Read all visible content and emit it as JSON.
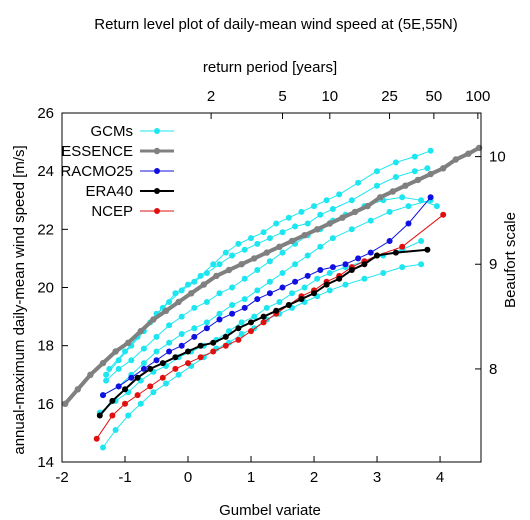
{
  "chart_data": {
    "type": "scatter",
    "title": "Return level plot of daily-mean wind speed at (5E,55N)",
    "xlabel": "Gumbel variate",
    "ylabel": "annual-maximum daily-mean wind speed [m/s]",
    "x2label": "return period [years]",
    "y2label": "Beaufort scale",
    "xlim": [
      -2,
      4.65
    ],
    "ylim": [
      14,
      26
    ],
    "xticks": [
      -2,
      -1,
      0,
      1,
      2,
      3,
      4
    ],
    "yticks": [
      14,
      16,
      18,
      20,
      22,
      24,
      26
    ],
    "top_ticks": [
      {
        "label": "2",
        "value": 2
      },
      {
        "label": "5",
        "value": 5
      },
      {
        "label": "10",
        "value": 10
      },
      {
        "label": "25",
        "value": 25
      },
      {
        "label": "50",
        "value": 50
      },
      {
        "label": "100",
        "value": 100
      }
    ],
    "right_ticks": [
      {
        "label": "8",
        "value": 17.2
      },
      {
        "label": "9",
        "value": 20.8
      },
      {
        "label": "10",
        "value": 24.5
      }
    ],
    "grid": false,
    "legend": "top-left",
    "series": [
      {
        "name": "GCMs",
        "color": "#1ee6f0",
        "lines": [
          {
            "x": [
              -1.25,
              -1.0,
              -0.8,
              -0.6,
              -0.4,
              -0.2,
              0,
              0.2,
              0.4,
              0.6,
              0.8,
              1.0,
              1.2,
              1.4,
              1.6,
              1.8,
              2.0,
              2.2,
              2.4,
              2.7,
              3.0,
              3.3,
              3.6,
              3.85
            ],
            "y": [
              17.2,
              17.8,
              18.3,
              18.8,
              19.3,
              19.8,
              20.1,
              20.4,
              20.8,
              21.2,
              21.5,
              21.7,
              21.9,
              22.2,
              22.4,
              22.6,
              22.8,
              23.0,
              23.2,
              23.6,
              24.0,
              24.3,
              24.5,
              24.7
            ]
          },
          {
            "x": [
              -1.3,
              -1.1,
              -0.9,
              -0.7,
              -0.5,
              -0.3,
              -0.1,
              0.1,
              0.3,
              0.5,
              0.7,
              0.9,
              1.1,
              1.3,
              1.5,
              1.7,
              1.9,
              2.1,
              2.3,
              2.6,
              3.0,
              3.3,
              3.6,
              3.8
            ],
            "y": [
              17.0,
              17.5,
              18.0,
              18.5,
              19.1,
              19.5,
              19.9,
              20.2,
              20.5,
              20.8,
              21.1,
              21.3,
              21.5,
              21.7,
              21.9,
              22.1,
              22.2,
              22.5,
              22.7,
              23.0,
              23.5,
              23.8,
              24.0,
              24.1
            ]
          },
          {
            "x": [
              -1.3,
              -1.1,
              -0.9,
              -0.7,
              -0.5,
              -0.3,
              -0.1,
              0.1,
              0.3,
              0.5,
              0.7,
              0.9,
              1.1,
              1.3,
              1.5,
              1.7,
              1.9,
              2.1,
              2.3,
              2.5,
              2.8,
              3.1,
              3.4,
              3.7,
              3.95
            ],
            "y": [
              16.8,
              17.2,
              17.5,
              17.9,
              18.3,
              18.7,
              19.0,
              19.3,
              19.5,
              19.8,
              20.0,
              20.3,
              20.6,
              20.9,
              21.2,
              21.5,
              21.8,
              22.0,
              22.3,
              22.5,
              22.8,
              23.0,
              23.1,
              23.0,
              22.8
            ]
          },
          {
            "x": [
              -1.35,
              -1.1,
              -0.9,
              -0.7,
              -0.5,
              -0.3,
              -0.1,
              0.1,
              0.3,
              0.5,
              0.7,
              0.9,
              1.1,
              1.3,
              1.5,
              1.7,
              1.9,
              2.1,
              2.3,
              2.6,
              2.9,
              3.2,
              3.5,
              3.85
            ],
            "y": [
              16.3,
              16.6,
              17.0,
              17.4,
              17.8,
              18.1,
              18.4,
              18.6,
              18.8,
              19.1,
              19.4,
              19.6,
              19.9,
              20.2,
              20.5,
              20.8,
              21.1,
              21.4,
              21.7,
              22.0,
              22.3,
              22.6,
              22.8,
              23.0
            ]
          },
          {
            "x": [
              -1.4,
              -1.15,
              -0.95,
              -0.75,
              -0.55,
              -0.35,
              -0.15,
              0.05,
              0.25,
              0.45,
              0.65,
              0.85,
              1.05,
              1.25,
              1.45,
              1.65,
              1.85,
              2.05,
              2.25,
              2.5,
              2.8,
              3.1,
              3.4,
              3.7
            ],
            "y": [
              15.7,
              16.1,
              16.4,
              16.8,
              17.1,
              17.3,
              17.6,
              17.8,
              18.0,
              18.2,
              18.5,
              18.8,
              19.0,
              19.3,
              19.5,
              19.8,
              20.0,
              20.3,
              20.5,
              20.7,
              20.9,
              21.1,
              21.3,
              21.6
            ]
          },
          {
            "x": [
              -1.35,
              -1.15,
              -0.95,
              -0.75,
              -0.55,
              -0.35,
              -0.15,
              0.05,
              0.25,
              0.45,
              0.65,
              0.85,
              1.05,
              1.25,
              1.45,
              1.65,
              1.85,
              2.05,
              2.25,
              2.5,
              2.8,
              3.1,
              3.4,
              3.7
            ],
            "y": [
              14.5,
              15.1,
              15.6,
              16.0,
              16.4,
              16.7,
              17.0,
              17.3,
              17.6,
              17.9,
              18.1,
              18.4,
              18.6,
              18.9,
              19.1,
              19.3,
              19.5,
              19.7,
              19.9,
              20.1,
              20.3,
              20.5,
              20.7,
              20.8
            ]
          }
        ]
      },
      {
        "name": "ESSENCE",
        "color": "#808080",
        "x": [
          -1.95,
          -1.75,
          -1.55,
          -1.35,
          -1.15,
          -0.95,
          -0.75,
          -0.55,
          -0.35,
          -0.15,
          0.05,
          0.25,
          0.45,
          0.65,
          0.85,
          1.05,
          1.25,
          1.45,
          1.65,
          1.85,
          2.05,
          2.25,
          2.45,
          2.65,
          2.85,
          3.05,
          3.25,
          3.45,
          3.65,
          3.85,
          4.05,
          4.25,
          4.45,
          4.62
        ],
        "y": [
          16.0,
          16.5,
          17.0,
          17.4,
          17.8,
          18.1,
          18.5,
          18.9,
          19.2,
          19.5,
          19.8,
          20.1,
          20.4,
          20.6,
          20.8,
          21.0,
          21.2,
          21.4,
          21.6,
          21.8,
          22.0,
          22.2,
          22.4,
          22.6,
          22.8,
          23.1,
          23.3,
          23.5,
          23.7,
          23.9,
          24.1,
          24.4,
          24.6,
          24.8
        ]
      },
      {
        "name": "RACMO25",
        "color": "#1010e0",
        "x": [
          -1.35,
          -1.1,
          -0.9,
          -0.7,
          -0.5,
          -0.3,
          -0.1,
          0.1,
          0.3,
          0.5,
          0.7,
          0.9,
          1.1,
          1.3,
          1.5,
          1.7,
          1.9,
          2.1,
          2.3,
          2.5,
          2.7,
          2.9,
          3.2,
          3.5,
          3.85
        ],
        "y": [
          16.3,
          16.6,
          16.9,
          17.2,
          17.5,
          17.8,
          18.0,
          18.3,
          18.6,
          18.9,
          19.1,
          19.3,
          19.6,
          19.8,
          20.0,
          20.2,
          20.4,
          20.6,
          20.7,
          20.8,
          21.0,
          21.2,
          21.6,
          22.2,
          23.1
        ]
      },
      {
        "name": "ERA40",
        "color": "#000000",
        "x": [
          -1.4,
          -1.2,
          -1.0,
          -0.8,
          -0.6,
          -0.4,
          -0.2,
          0,
          0.2,
          0.4,
          0.6,
          0.8,
          1.0,
          1.2,
          1.4,
          1.6,
          1.8,
          2.0,
          2.2,
          2.4,
          2.6,
          2.8,
          3.0,
          3.3,
          3.8
        ],
        "y": [
          15.6,
          16.1,
          16.5,
          16.9,
          17.2,
          17.4,
          17.6,
          17.8,
          18.0,
          18.1,
          18.3,
          18.6,
          18.8,
          19.0,
          19.2,
          19.4,
          19.6,
          19.8,
          20.1,
          20.3,
          20.6,
          20.8,
          21.1,
          21.2,
          21.3
        ]
      },
      {
        "name": "NCEP",
        "color": "#e01010",
        "x": [
          -1.45,
          -1.2,
          -1.0,
          -0.8,
          -0.6,
          -0.4,
          -0.2,
          0,
          0.2,
          0.4,
          0.6,
          0.8,
          1.0,
          1.2,
          1.4,
          1.6,
          1.8,
          2.0,
          2.2,
          2.4,
          2.6,
          2.8,
          3.0,
          3.4,
          4.05
        ],
        "y": [
          14.8,
          15.6,
          16.0,
          16.3,
          16.6,
          16.9,
          17.2,
          17.4,
          17.6,
          17.8,
          18.0,
          18.2,
          18.5,
          18.8,
          19.1,
          19.4,
          19.7,
          19.9,
          20.2,
          20.4,
          20.7,
          20.9,
          21.1,
          21.4,
          22.5
        ]
      }
    ]
  }
}
